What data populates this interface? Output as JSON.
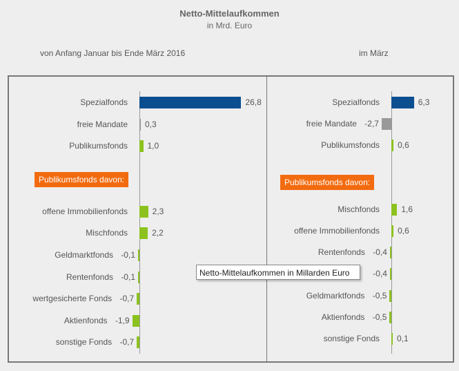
{
  "chart_data": [
    {
      "type": "bar",
      "orientation": "horizontal",
      "title": "Netto-Mittelaufkommen",
      "subtitle": "in Mrd. Euro",
      "period": "von  Anfang Januar  bis Ende März 2016",
      "highlight_label": "Publikumsfonds davon:",
      "top": [
        {
          "label": "Spezialfonds",
          "value": 26.8,
          "text": "26,8",
          "color": "#0b4f91"
        },
        {
          "label": "freie Mandate",
          "value": 0.3,
          "text": "0,3",
          "color": "#999999"
        },
        {
          "label": "Publikumsfonds",
          "value": 1.0,
          "text": "1,0",
          "color": "#8cc21f"
        }
      ],
      "sub": [
        {
          "label": "offene Immobilienfonds",
          "value": 2.3,
          "text": "2,3"
        },
        {
          "label": "Mischfonds",
          "value": 2.2,
          "text": "2,2"
        },
        {
          "label": "Geldmarktfonds",
          "value": -0.1,
          "text": "-0,1"
        },
        {
          "label": "Rentenfonds",
          "value": -0.1,
          "text": "-0,1"
        },
        {
          "label": "wertgesicherte Fonds",
          "value": -0.7,
          "text": "-0,7"
        },
        {
          "label": "Aktienfonds",
          "value": -1.9,
          "text": "-1,9"
        },
        {
          "label": "sonstige Fonds",
          "value": -0.7,
          "text": "-0,7"
        }
      ]
    },
    {
      "type": "bar",
      "orientation": "horizontal",
      "period": "im März",
      "highlight_label": "Publikumsfonds davon:",
      "top": [
        {
          "label": "Spezialfonds",
          "value": 6.3,
          "text": "6,3",
          "color": "#0b4f91"
        },
        {
          "label": "freie Mandate",
          "value": -2.7,
          "text": "-2,7",
          "color": "#999999"
        },
        {
          "label": "Publikumsfonds",
          "value": 0.6,
          "text": "0,6",
          "color": "#8cc21f"
        }
      ],
      "sub": [
        {
          "label": "Mischfonds",
          "value": 1.6,
          "text": "1,6"
        },
        {
          "label": "offene Immobilienfonds",
          "value": 0.6,
          "text": "0,6"
        },
        {
          "label": "Rentenfonds",
          "value": -0.4,
          "text": "-0,4"
        },
        {
          "label": "",
          "value": -0.4,
          "text": "-0,4"
        },
        {
          "label": "Geldmarktfonds",
          "value": -0.5,
          "text": "-0,5"
        },
        {
          "label": "Aktienfonds",
          "value": -0.5,
          "text": "-0,5"
        },
        {
          "label": "sonstige Fonds",
          "value": 0.1,
          "text": "0,1"
        }
      ]
    }
  ],
  "colors": {
    "sub_bar": "#8cc21f",
    "highlight": "#f26b0f"
  },
  "tooltip": "Netto-Mittelaufkommen in Millarden Euro"
}
